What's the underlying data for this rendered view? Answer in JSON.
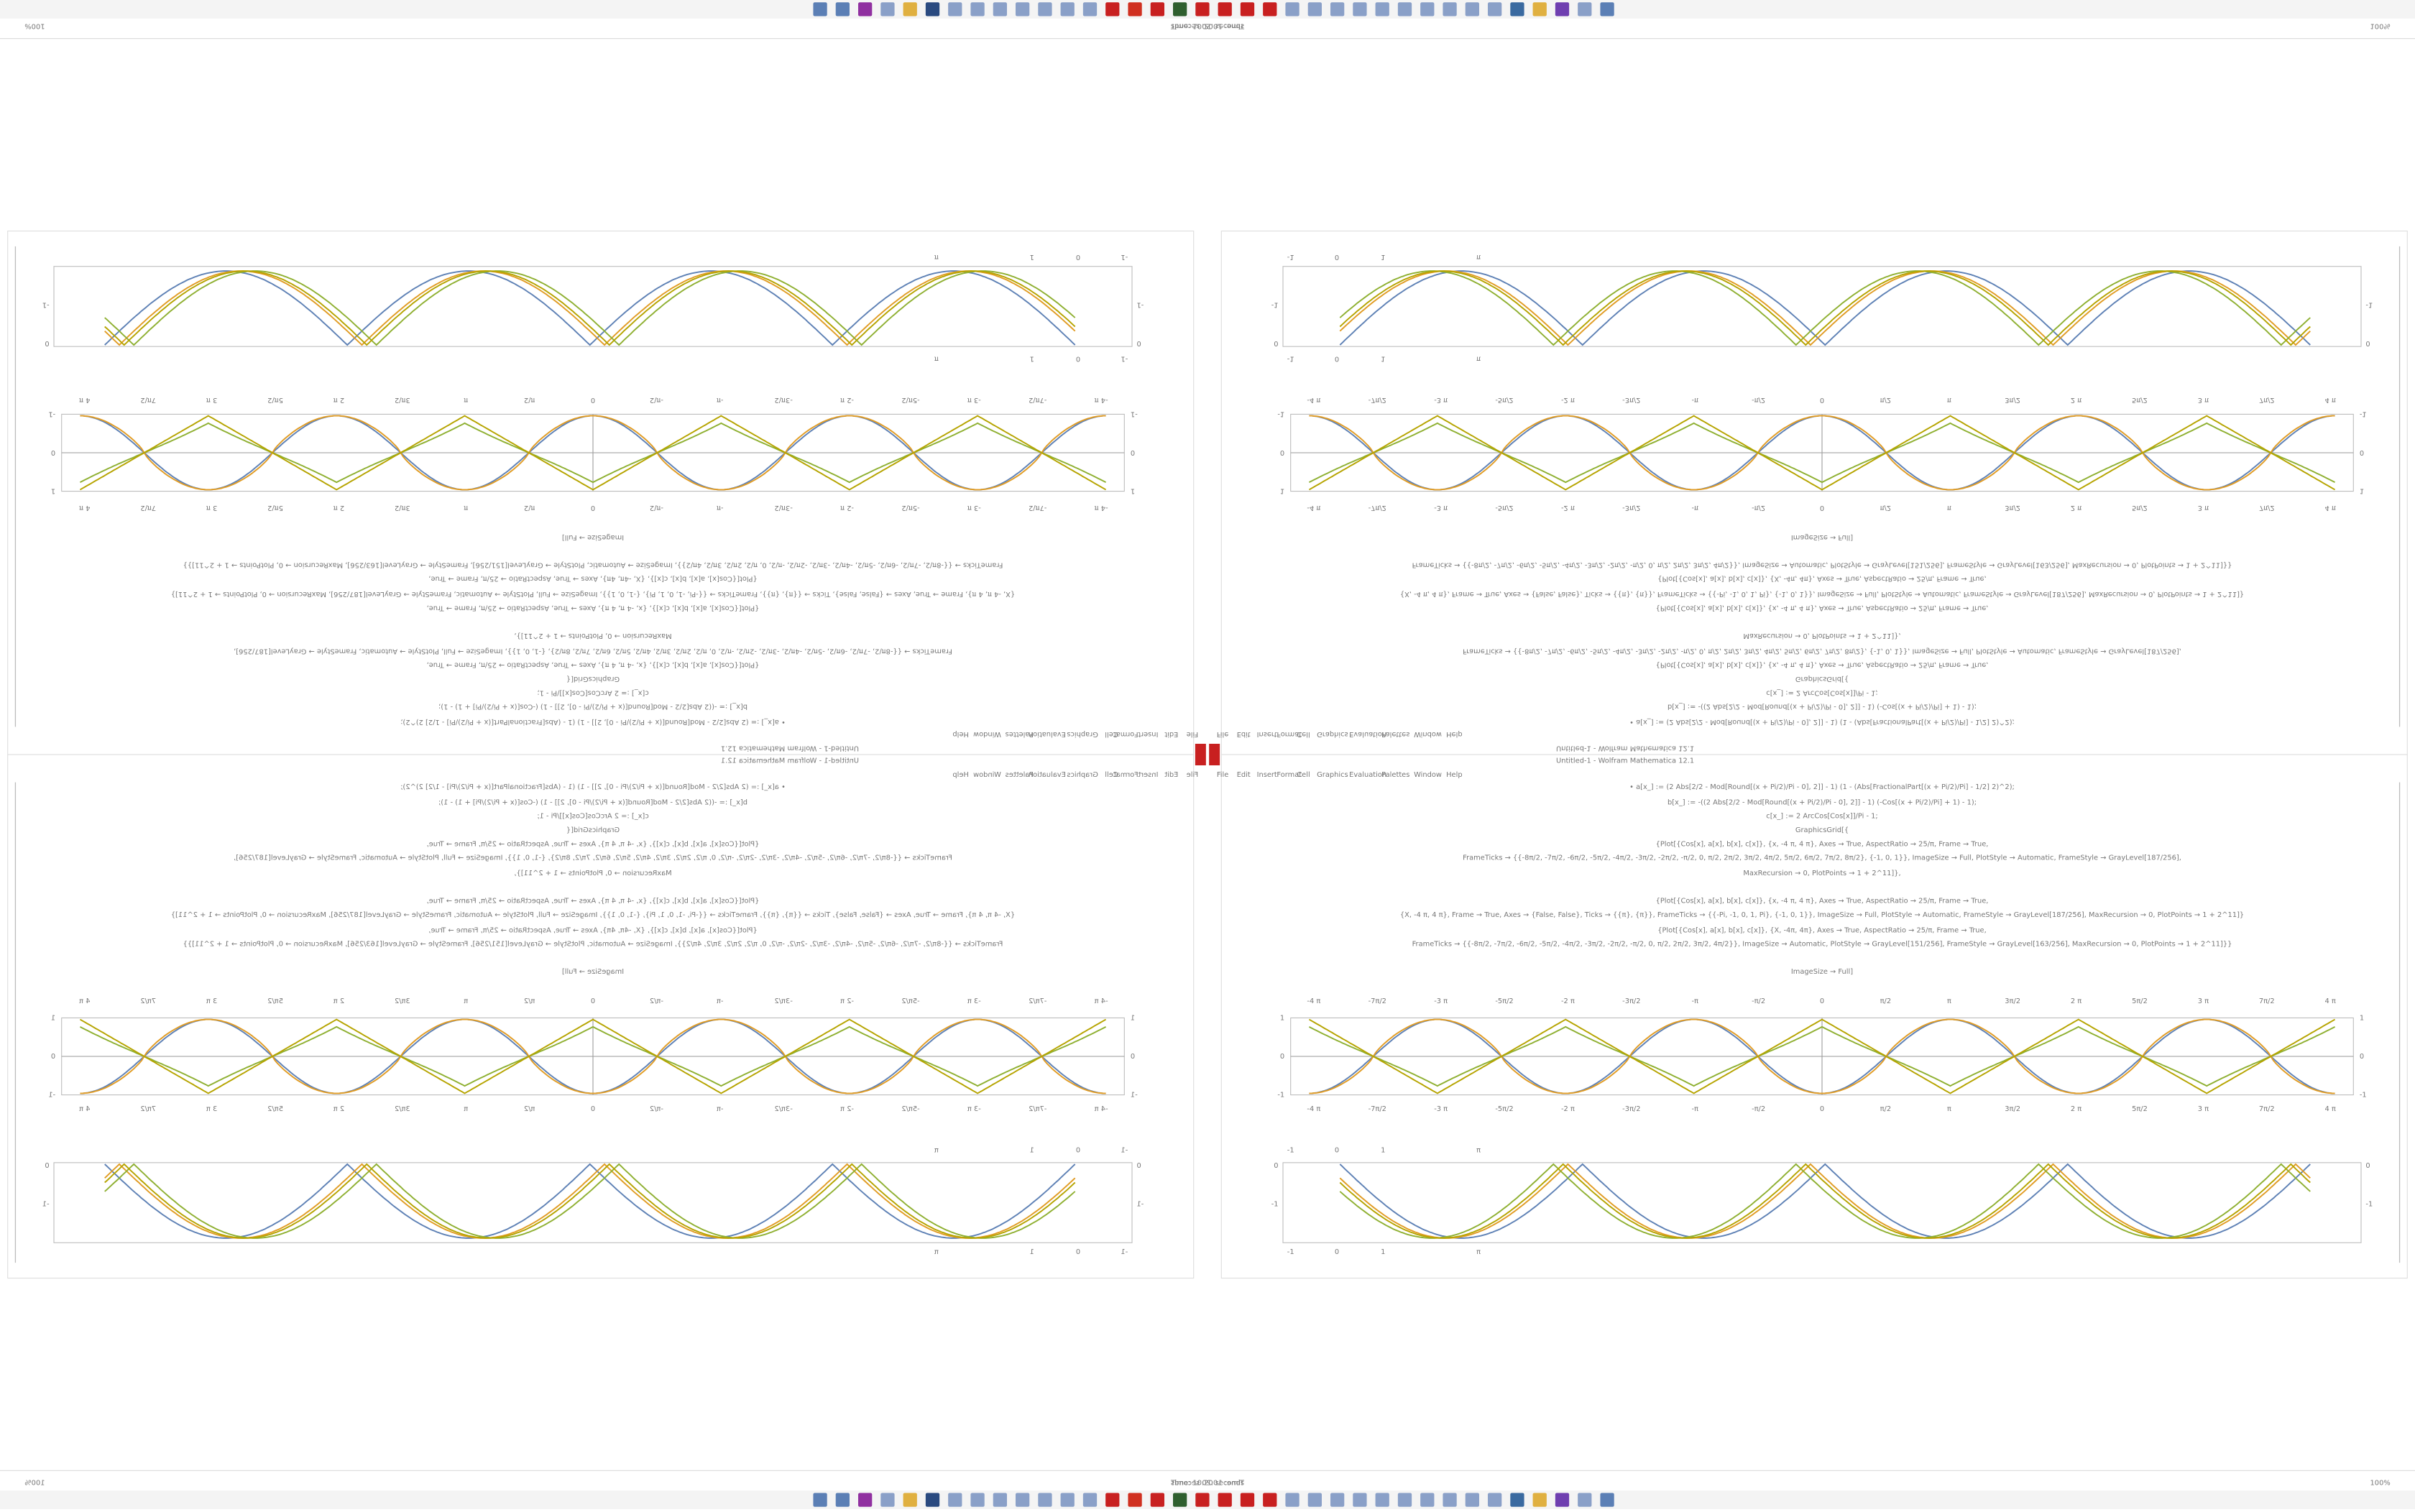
{
  "status": {
    "time": "Time: 10.20 seconds",
    "zoom": "100%"
  },
  "window": {
    "title": "Untitled-1 - Wolfram Mathematica 12.1",
    "menu": [
      "File",
      "Edit",
      "Insert",
      "Format",
      "Cell",
      "Graphics",
      "Evaluation",
      "Palettes",
      "Window",
      "Help"
    ]
  },
  "notebook": {
    "code": [
      "• a[x_] := (2 Abs[2/2 - Mod[Round[(x + Pi/2)/Pi - 0], 2]] - 1) (1 - (Abs[FractionalPart[(x + Pi/2)/Pi] - 1/2] 2)^2);",
      "b[x_] := -((2 Abs[2/2 - Mod[Round[(x + Pi/2)/Pi - 0], 2]] - 1) (-Cos[(x + Pi/2)/Pi] + 1) - 1);",
      "c[x_] := 2 ArcCos[Cos[x]]/Pi - 1;",
      "GraphicsGrid[{",
      "{Plot[{Cos[x], a[x], b[x], c[x]}, {x, -4 π, 4 π}, Axes → True, AspectRatio → 25/π, Frame → True,",
      "FrameTicks → {{-8π/2, -7π/2, -6π/2, -5π/2, -4π/2, -3π/2, -2π/2, -π/2, 0, π/2, 2π/2, 3π/2, 4π/2, 5π/2, 6π/2, 7π/2, 8π/2}, {-1, 0, 1}}, ImageSize → Full, PlotStyle → Automatic, FrameStyle → GrayLevel[187/256],",
      "MaxRecursion → 0, PlotPoints → 1 + 2^11]},",
      "{Plot[{Cos[x], a[x], b[x], c[x]}, {x, -4 π, 4 π}, Axes → True, AspectRatio → 25/π, Frame → True,",
      "{X, -4 π, 4 π}, Frame → True, Axes → {False, False}, Ticks → {{π}, {π}}, FrameTicks → {{-Pi, -1, 0, 1, Pi}, {-1, 0, 1}}, ImageSize → Full, PlotStyle → Automatic, FrameStyle → GrayLevel[187/256], MaxRecursion → 0, PlotPoints → 1 + 2^11]}",
      "{Plot[{Cos[x], a[x], b[x], c[x]}, {X, -4π, 4π}, Axes → True, AspectRatio → 25/π, Frame → True,",
      "FrameTicks → {{-8π/2, -7π/2, -6π/2, -5π/2, -4π/2, -3π/2, -2π/2, -π/2, 0, π/2, 2π/2, 3π/2, 4π/2}}, ImageSize → Automatic, PlotStyle → GrayLevel[151/256], FrameStyle → GrayLevel[163/256], MaxRecursion → 0, PlotPoints → 1 + 2^11]}}",
      "ImageSize → Full]"
    ],
    "plot1": {
      "xticks": [
        "-4 π",
        "-7π/2",
        "-3 π",
        "-5π/2",
        "-2 π",
        "-3π/2",
        "-π",
        "-π/2",
        "0",
        "π/2",
        "π",
        "3π/2",
        "2 π",
        "5π/2",
        "3 π",
        "7π/2",
        "4 π"
      ],
      "yticks": [
        "1",
        "0",
        "-1"
      ]
    },
    "plot2": {
      "xticks": [
        "-1",
        "0",
        "1",
        "π"
      ],
      "yticks": [
        "0",
        "-1"
      ]
    }
  }
}
